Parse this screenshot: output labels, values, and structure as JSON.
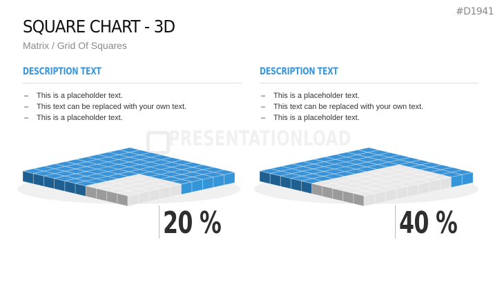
{
  "slide": {
    "code": "#D1941",
    "title": "SQUARE CHART - 3D",
    "subtitle": "Matrix / Grid Of Squares",
    "watermark": "PRESENTATIONLOAD"
  },
  "columns": [
    {
      "heading": "DESCRIPTION TEXT",
      "bullets": [
        "This is a placeholder text.",
        "This text can be replaced with your own text.",
        "This is a placeholder text."
      ],
      "percent_label": "20 %"
    },
    {
      "heading": "DESCRIPTION TEXT",
      "bullets": [
        "This is a placeholder text.",
        "This text can be replaced with your own text.",
        "This is a placeholder text."
      ],
      "percent_label": "40 %"
    }
  ],
  "bullet_marker": "–",
  "colors": {
    "accent": "#3a96dd",
    "grid_blue_top": "#3a93d6",
    "grid_blue_left": "#1f5f8f",
    "grid_blue_right": "#3595d9",
    "grid_gray_top": "#e9e9e9",
    "grid_gray_left": "#9b9b9b",
    "grid_gray_right": "#e2e2e2"
  },
  "chart_data": [
    {
      "type": "grid-3d",
      "grid": [
        10,
        10
      ],
      "value": 20,
      "unit": "%"
    },
    {
      "type": "grid-3d",
      "grid": [
        10,
        10
      ],
      "value": 40,
      "unit": "%"
    }
  ]
}
